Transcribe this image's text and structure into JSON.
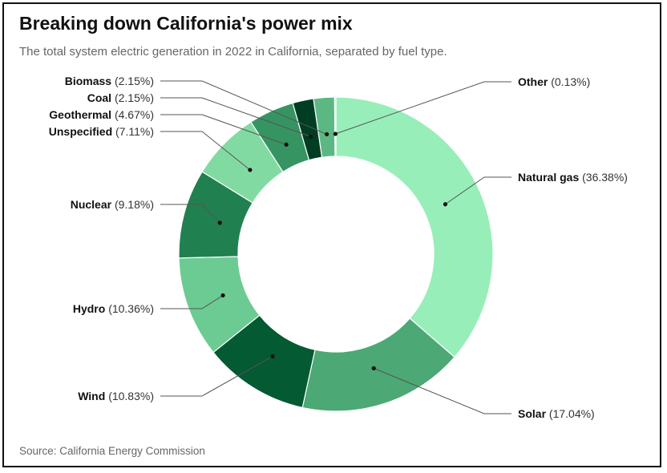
{
  "header": {
    "title": "Breaking down California's power mix",
    "subtitle": "The total system electric generation in 2022 in California, separated by fuel type."
  },
  "footer": {
    "source": "Source: California Energy Commission"
  },
  "chart_data": {
    "type": "pie",
    "variant": "donut",
    "title": "Breaking down California's power mix",
    "subtitle": "The total system electric generation in 2022 in California, separated by fuel type.",
    "slices": [
      {
        "name": "Natural gas",
        "value": 36.38,
        "label": "(36.38%)",
        "color": "#98eeb9"
      },
      {
        "name": "Solar",
        "value": 17.04,
        "label": "(17.04%)",
        "color": "#4ca875"
      },
      {
        "name": "Wind",
        "value": 10.83,
        "label": "(10.83%)",
        "color": "#045a32"
      },
      {
        "name": "Hydro",
        "value": 10.36,
        "label": "(10.36%)",
        "color": "#6ccb92"
      },
      {
        "name": "Nuclear",
        "value": 9.18,
        "label": "(9.18%)",
        "color": "#218050"
      },
      {
        "name": "Unspecified",
        "value": 7.11,
        "label": "(7.11%)",
        "color": "#82daa3"
      },
      {
        "name": "Geothermal",
        "value": 4.67,
        "label": "(4.67%)",
        "color": "#369462"
      },
      {
        "name": "Coal",
        "value": 2.15,
        "label": "(2.15%)",
        "color": "#003d22"
      },
      {
        "name": "Biomass",
        "value": 2.15,
        "label": "(2.15%)",
        "color": "#5cb883"
      },
      {
        "name": "Other",
        "value": 0.13,
        "label": "(0.13%)",
        "color": "#8fe2b0"
      }
    ],
    "unit": "%",
    "legend": "callout labels"
  }
}
